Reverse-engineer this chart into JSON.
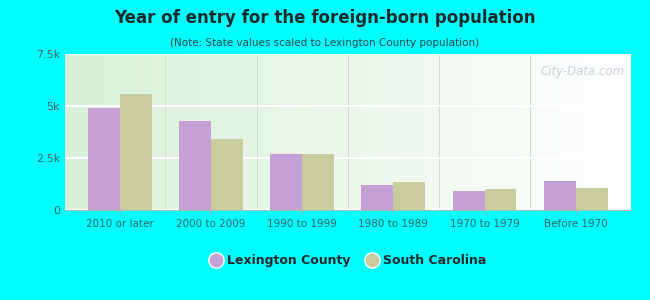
{
  "title": "Year of entry for the foreign-born population",
  "subtitle": "(Note: State values scaled to Lexington County population)",
  "categories": [
    "2010 or later",
    "2000 to 2009",
    "1990 to 1999",
    "1980 to 1989",
    "1970 to 1979",
    "Before 1970"
  ],
  "lexington_values": [
    4900,
    4300,
    2700,
    1200,
    900,
    1400
  ],
  "sc_values": [
    5600,
    3400,
    2700,
    1350,
    1000,
    1050
  ],
  "lexington_color": "#c4a0d4",
  "sc_color": "#c8cc9f",
  "background_color": "#00ffff",
  "ylim": [
    0,
    7500
  ],
  "yticks": [
    0,
    2500,
    5000,
    7500
  ],
  "ytick_labels": [
    "0",
    "2.5k",
    "5k",
    "7.5k"
  ],
  "legend_label1": "Lexington County",
  "legend_label2": "South Carolina",
  "bar_width": 0.35,
  "watermark": "City-Data.com",
  "title_color": "#1a2a2a",
  "subtitle_color": "#2a4a4a",
  "tick_color": "#336666",
  "grid_color": "#ffffff"
}
